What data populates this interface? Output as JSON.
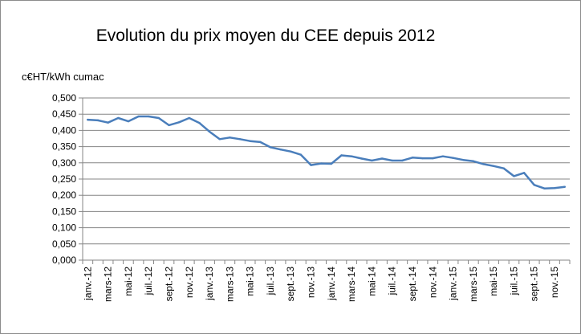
{
  "chart_data": {
    "type": "line",
    "title": "Evolution du prix moyen du CEE depuis 2012",
    "ylabel": "c€HT/kWh cumac",
    "xlabel": "",
    "ylim": [
      0,
      0.5
    ],
    "yticks": [
      "0,000",
      "0,050",
      "0,100",
      "0,150",
      "0,200",
      "0,250",
      "0,300",
      "0,350",
      "0,400",
      "0,450",
      "0,500"
    ],
    "grid": true,
    "legend": "none",
    "line_color": "#4a7ebb",
    "x_tick_labels": [
      "janv.-12",
      "mars-12",
      "mai-12",
      "juil.-12",
      "sept.-12",
      "nov.-12",
      "janv.-13",
      "mars-13",
      "mai-13",
      "juil.-13",
      "sept.-13",
      "nov.-13",
      "janv.-14",
      "mars-14",
      "mai-14",
      "juil.-14",
      "sept.-14",
      "nov.-14",
      "janv.-15",
      "mars-15",
      "mai-15",
      "juil.-15",
      "sept.-15",
      "nov.-15"
    ],
    "categories": [
      "janv.-12",
      "févr.-12",
      "mars-12",
      "avr.-12",
      "mai-12",
      "juin-12",
      "juil.-12",
      "août-12",
      "sept.-12",
      "oct.-12",
      "nov.-12",
      "déc.-12",
      "janv.-13",
      "févr.-13",
      "mars-13",
      "avr.-13",
      "mai-13",
      "juin-13",
      "juil.-13",
      "août-13",
      "sept.-13",
      "oct.-13",
      "nov.-13",
      "déc.-13",
      "janv.-14",
      "févr.-14",
      "mars-14",
      "avr.-14",
      "mai-14",
      "juin-14",
      "juil.-14",
      "août-14",
      "sept.-14",
      "oct.-14",
      "nov.-14",
      "déc.-14",
      "janv.-15",
      "févr.-15",
      "mars-15",
      "avr.-15",
      "mai-15",
      "juin-15",
      "juil.-15",
      "août-15",
      "sept.-15",
      "oct.-15",
      "nov.-15",
      "déc.-15"
    ],
    "values": [
      0.433,
      0.431,
      0.424,
      0.438,
      0.428,
      0.443,
      0.443,
      0.438,
      0.416,
      0.425,
      0.438,
      0.423,
      0.396,
      0.373,
      0.378,
      0.373,
      0.367,
      0.364,
      0.348,
      0.341,
      0.335,
      0.325,
      0.293,
      0.298,
      0.297,
      0.323,
      0.32,
      0.313,
      0.307,
      0.313,
      0.307,
      0.307,
      0.316,
      0.314,
      0.314,
      0.32,
      0.315,
      0.309,
      0.305,
      0.296,
      0.29,
      0.283,
      0.259,
      0.269,
      0.232,
      0.221,
      0.222,
      0.226
    ]
  }
}
